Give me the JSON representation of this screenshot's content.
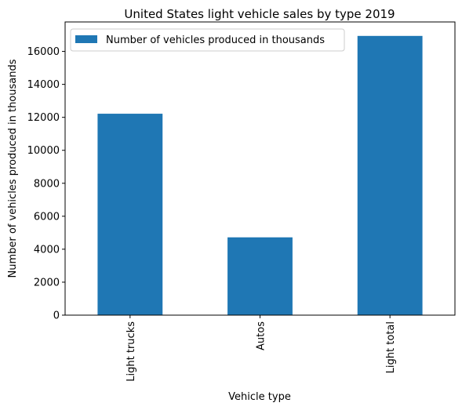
{
  "chart_data": {
    "type": "bar",
    "title": "United States light vehicle sales by type 2019",
    "xlabel": "Vehicle type",
    "ylabel": "Number of vehicles produced in thousands",
    "categories": [
      "Light trucks",
      "Autos",
      "Light total"
    ],
    "series": [
      {
        "name": "Number of vehicles produced in thousands",
        "values": [
          12220,
          4720,
          16940
        ],
        "color": "#1f77b4"
      }
    ],
    "ylim": [
      0,
      17787
    ],
    "yticks": [
      0,
      2000,
      4000,
      6000,
      8000,
      10000,
      12000,
      14000,
      16000
    ],
    "grid": false,
    "legend_position": "top-left"
  }
}
